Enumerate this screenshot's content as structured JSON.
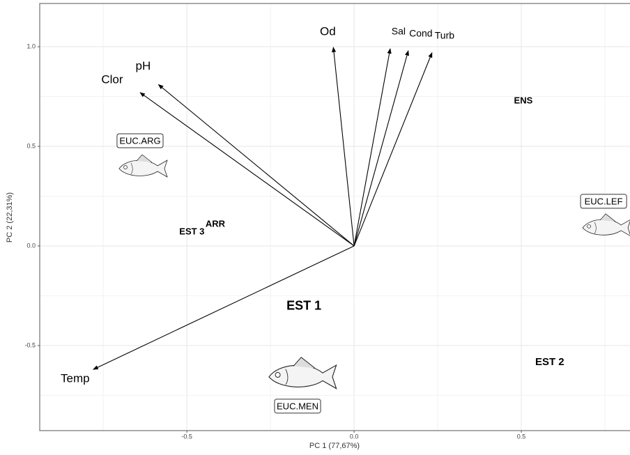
{
  "chart_data": {
    "type": "biplot",
    "x_label": "PC 1 (77,67%)",
    "y_label": "PC 2 (22,31%)",
    "xlim": [
      -0.94,
      0.825
    ],
    "ylim": [
      -0.927,
      1.217
    ],
    "xticks": [
      -0.5,
      {
        "value": 0,
        "label": "0.0"
      },
      0.5
    ],
    "yticks": [
      -0.5,
      {
        "value": 0,
        "label": "0.0"
      },
      0.5,
      {
        "value": 1,
        "label": "1.0"
      }
    ],
    "grid": true,
    "arrow_color": "#000000",
    "loadings": {
      "labels": [
        "Od",
        "Sal",
        "Cond",
        "Turb",
        "pH",
        "Clor",
        "Temp"
      ],
      "x": [
        -0.062,
        0.108,
        0.162,
        0.233,
        -0.585,
        -0.64,
        -0.78
      ],
      "y": [
        0.997,
        0.99,
        0.98,
        0.97,
        0.81,
        0.77,
        -0.62
      ]
    },
    "sites": {
      "labels": [
        "EST 1",
        "EST 2",
        "EST 3",
        "ARR",
        "ENS"
      ],
      "x": [
        -0.15,
        0.585,
        -0.485,
        -0.415,
        0.506
      ],
      "y": [
        -0.304,
        -0.584,
        0.07,
        0.108,
        0.727
      ]
    },
    "species": {
      "labels": [
        "EUC.ARG",
        "EUC.LEF",
        "EUC.MEN"
      ],
      "x": [
        -0.64,
        0.746,
        -0.169
      ],
      "y": [
        0.528,
        0.224,
        -0.804
      ]
    }
  }
}
